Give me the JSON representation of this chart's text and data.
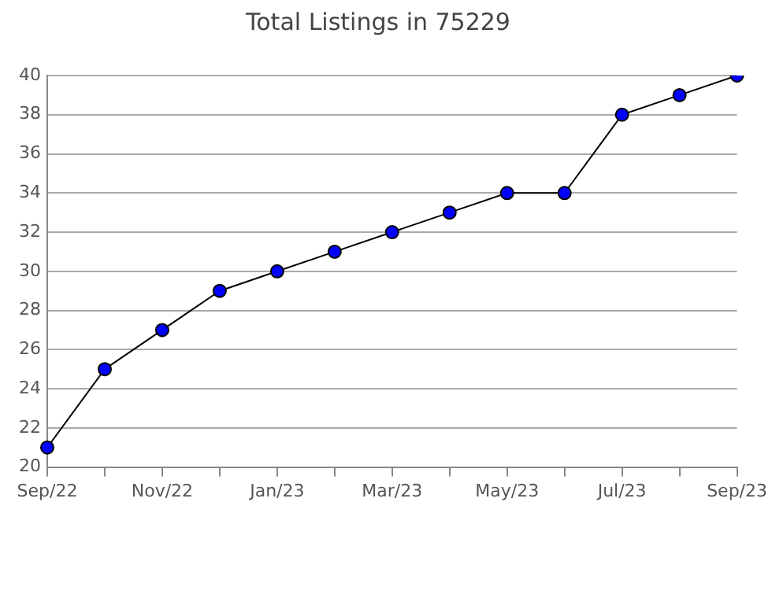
{
  "chart_data": {
    "type": "line",
    "title": "Total Listings in 75229",
    "categories": [
      "Sep/22",
      null,
      "Nov/22",
      null,
      "Jan/23",
      null,
      "Mar/23",
      null,
      "May/23",
      null,
      "Jul/23",
      null,
      "Sep/23"
    ],
    "series": [
      {
        "color": "#0000ff",
        "values": [
          21,
          25,
          27,
          29,
          30,
          31,
          32,
          33,
          34,
          34,
          38,
          39,
          40
        ]
      }
    ],
    "ylim": [
      20,
      40
    ],
    "yticks": [
      20,
      22,
      24,
      26,
      28,
      30,
      32,
      34,
      36,
      38,
      40
    ],
    "grid": "y",
    "legend": false,
    "marker": "circle",
    "line_style": "solid"
  }
}
